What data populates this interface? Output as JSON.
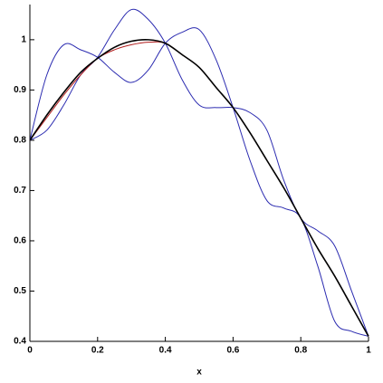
{
  "chart_data": {
    "type": "line",
    "xlabel": "x",
    "x": [
      0,
      0.05,
      0.1,
      0.15,
      0.2,
      0.25,
      0.3,
      0.35,
      0.4,
      0.45,
      0.5,
      0.55,
      0.6,
      0.65,
      0.7,
      0.75,
      0.8,
      0.85,
      0.9,
      0.95,
      1
    ],
    "series": [
      {
        "color": "#2b2bb0",
        "values": [
          0.8,
          0.82,
          0.87,
          0.93,
          0.965,
          1.02,
          1.06,
          1.04,
          0.993,
          0.92,
          0.87,
          0.865,
          0.865,
          0.855,
          0.82,
          0.72,
          0.645,
          0.62,
          0.59,
          0.5,
          0.41
        ]
      },
      {
        "color": "#2b2bb0",
        "values": [
          0.8,
          0.93,
          0.99,
          0.98,
          0.965,
          0.935,
          0.915,
          0.94,
          0.993,
          1.015,
          1.02,
          0.96,
          0.865,
          0.76,
          0.68,
          0.665,
          0.645,
          0.55,
          0.44,
          0.42,
          0.41
        ]
      },
      {
        "color": "#b01c1c",
        "values": [
          0.8,
          0.845,
          0.89,
          0.93,
          0.963,
          0.98,
          0.99,
          0.995,
          0.993,
          0.97,
          0.945,
          0.905,
          0.865,
          0.815,
          0.76,
          0.705,
          0.645,
          0.585,
          0.53,
          0.47,
          0.41
        ]
      },
      {
        "color": "#000000",
        "values": [
          0.8,
          0.85,
          0.895,
          0.935,
          0.963,
          0.985,
          0.997,
          1.0,
          0.993,
          0.97,
          0.945,
          0.905,
          0.865,
          0.815,
          0.76,
          0.705,
          0.645,
          0.585,
          0.53,
          0.47,
          0.41
        ]
      }
    ],
    "xlim": [
      0,
      1
    ],
    "xticks": [
      0,
      0.2,
      0.4,
      0.6,
      0.8,
      1
    ],
    "ylim": [
      0.4,
      1.07
    ],
    "yticks": [
      0.4,
      0.5,
      0.6,
      0.7,
      0.8,
      0.9,
      1
    ]
  }
}
